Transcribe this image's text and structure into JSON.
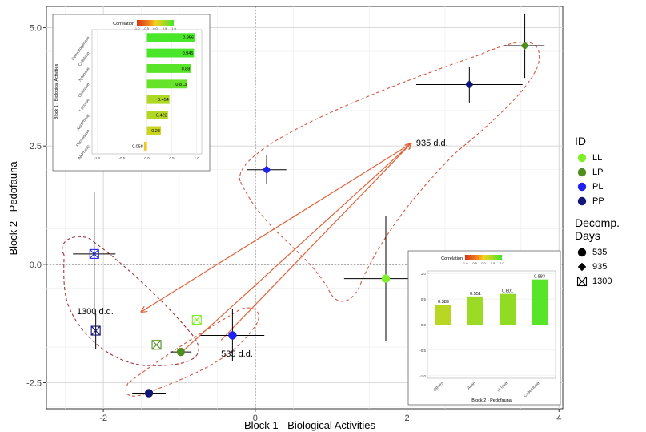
{
  "chart_data": [
    {
      "type": "scatter",
      "xlabel": "Block 1 - Biological Activities",
      "ylabel": "Block 2 - Pedofauna",
      "xlim": [
        -2.75,
        4.05
      ],
      "ylim": [
        -3.05,
        5.45
      ],
      "xticks": [
        -2,
        0,
        2,
        4
      ],
      "yticks": [
        -2.5,
        0.0,
        2.5,
        5.0
      ],
      "ytick_labels": [
        "-2.5",
        "0.0",
        "2.5",
        "5.0"
      ],
      "grid": true,
      "points": [
        {
          "id": "LL",
          "days": "535",
          "x": 1.72,
          "y": -0.3,
          "xerr": 0.55,
          "yerr": 1.32
        },
        {
          "id": "LP",
          "days": "535",
          "x": -0.98,
          "y": -1.85,
          "xerr": 0.14,
          "yerr": 0.0
        },
        {
          "id": "PL",
          "days": "535",
          "x": -0.3,
          "y": -1.5,
          "xerr": 0.42,
          "yerr": 0.55
        },
        {
          "id": "PP",
          "days": "535",
          "x": -1.4,
          "y": -2.72,
          "xerr": 0.22,
          "yerr": 0.0
        },
        {
          "id": "LP",
          "days": "935",
          "x": 3.55,
          "y": 4.62,
          "xerr": 0.26,
          "yerr": 0.68
        },
        {
          "id": "PL",
          "days": "935",
          "x": 0.15,
          "y": 2.0,
          "xerr": 0.26,
          "yerr": 0.3
        },
        {
          "id": "PP",
          "days": "935",
          "x": 2.82,
          "y": 3.8,
          "xerr": 0.7,
          "yerr": 0.38
        },
        {
          "id": "LL",
          "days": "1300",
          "x": -0.77,
          "y": -1.17,
          "xerr": 0.0,
          "yerr": 0.0
        },
        {
          "id": "LP",
          "days": "1300",
          "x": -1.3,
          "y": -1.7,
          "xerr": 0.0,
          "yerr": 0.0
        },
        {
          "id": "PL",
          "days": "1300",
          "x": -2.12,
          "y": 0.22,
          "xerr": 0.28,
          "yerr": 1.3
        },
        {
          "id": "PP",
          "days": "1300",
          "x": -2.1,
          "y": -1.4,
          "xerr": 0.0,
          "yerr": 0.38
        }
      ],
      "annotations": [
        {
          "text": "935 d.d.",
          "x": 2.12,
          "y": 2.5
        },
        {
          "text": "1300 d.d.",
          "x": -2.35,
          "y": -1.05
        },
        {
          "text": "535 d.d.",
          "x": -0.45,
          "y": -1.95
        }
      ],
      "arrows": [
        {
          "from": [
            -0.45,
            -1.6
          ],
          "to": [
            2.05,
            2.55
          ]
        },
        {
          "from": [
            -1.0,
            -1.9
          ],
          "to": [
            2.05,
            2.55
          ]
        },
        {
          "from": [
            2.05,
            2.55
          ],
          "to": [
            -1.5,
            -1.0
          ]
        }
      ],
      "legend_id": {
        "title": "ID",
        "entries": [
          "LL",
          "LP",
          "PL",
          "PP"
        ]
      },
      "legend_days": {
        "title": "Decomp. Days",
        "entries": [
          "535",
          "935",
          "1300"
        ]
      },
      "colors": {
        "LL": "#80ef2a",
        "LP": "#4f8d1f",
        "PL": "#1f22ee",
        "PP": "#131676",
        "arrow": "#e2623a",
        "ellipse": "#d45843",
        "ellipse_dark": "#a2343b"
      },
      "legend_position": "right"
    },
    {
      "type": "bar",
      "orientation": "horizontal",
      "ylabel": "Block 1 - Biological Activities",
      "legend_title": "Correlation",
      "legend_ticks": [
        "-1.0",
        "-0.5",
        "0.0",
        "0.5",
        "1.0"
      ],
      "categories": [
        "Dehydrogenase",
        "Cellulase",
        "Xylanase",
        "Chitinase",
        "Laccase",
        "AcidPhosp",
        "Peroxidase",
        "AlkPhosp"
      ],
      "values": [
        0.956,
        0.945,
        0.88,
        0.813,
        0.454,
        0.422,
        0.28,
        -0.058
      ],
      "value_labels": [
        "0.956",
        "0.945",
        "0.88",
        "0.813",
        "0.454",
        "0.422",
        "0.28",
        "-0.058"
      ],
      "xlim": [
        -1.1,
        1.1
      ],
      "xticks": [
        "-1.0",
        "-0.5",
        "0.0",
        "0.5",
        "1.0"
      ]
    },
    {
      "type": "bar",
      "xlabel": "Block 2 - Pedofauna",
      "legend_title": "Correlation",
      "legend_ticks": [
        "-1.0",
        "-0.5",
        "0.0",
        "0.5",
        "1.0"
      ],
      "categories": [
        "Others",
        "Acari",
        "N.Taxa",
        "Collembola"
      ],
      "values": [
        0.389,
        0.551,
        0.601,
        0.883
      ],
      "value_labels": [
        "0.389",
        "0.551",
        "0.601",
        "0.883"
      ],
      "ylim": [
        -1.05,
        1.05
      ],
      "yticks": [
        "-1.0",
        "-0.5",
        "0.0",
        "0.5",
        "1.0"
      ]
    }
  ]
}
